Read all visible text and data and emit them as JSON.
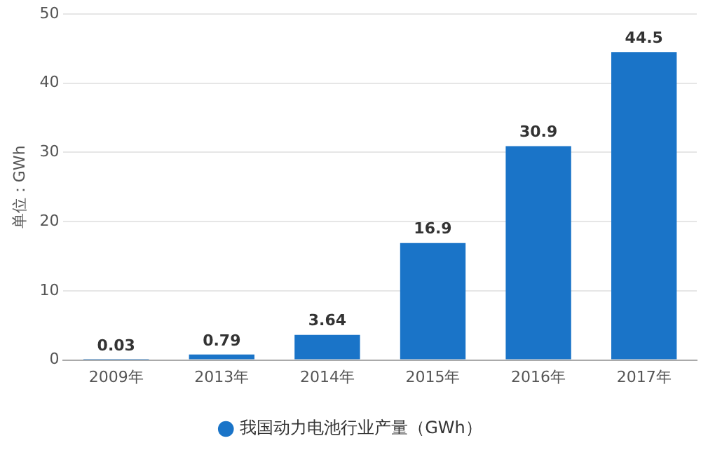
{
  "chart_data": {
    "type": "bar",
    "ylabel": "单位：GWh",
    "categories": [
      "2009年",
      "2013年",
      "2014年",
      "2015年",
      "2016年",
      "2017年"
    ],
    "series": [
      {
        "name": "我国动力电池行业产量（GWh）",
        "color": "#1a74c8",
        "values": [
          0.03,
          0.79,
          3.64,
          16.9,
          30.9,
          44.5
        ]
      }
    ],
    "ylim": [
      0,
      50
    ],
    "yticks": [
      0,
      10,
      20,
      30,
      40,
      50
    ],
    "grid": "y",
    "legend": "bottom",
    "data_labels": true
  }
}
